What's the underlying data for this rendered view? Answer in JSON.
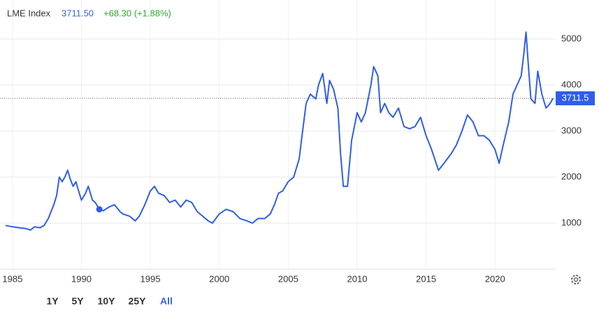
{
  "header": {
    "name": "LME Index",
    "price": "3711.50",
    "change": "+68.30 (+1.88%)"
  },
  "range_buttons": [
    "1Y",
    "5Y",
    "10Y",
    "25Y",
    "All"
  ],
  "active_range": 4,
  "chart_data": {
    "type": "line",
    "x": [
      1984.5,
      1985,
      1985.5,
      1986,
      1986.3,
      1986.6,
      1987,
      1987.3,
      1987.6,
      1988,
      1988.2,
      1988.4,
      1988.6,
      1988.8,
      1989,
      1989.2,
      1989.4,
      1989.6,
      1989.8,
      1990,
      1990.3,
      1990.5,
      1990.8,
      1991,
      1991.3,
      1991.6,
      1992,
      1992.4,
      1992.8,
      1993,
      1993.5,
      1993.9,
      1994.2,
      1994.6,
      1995,
      1995.3,
      1995.6,
      1996,
      1996.4,
      1996.8,
      1997.2,
      1997.6,
      1998,
      1998.4,
      1998.8,
      1999.2,
      1999.5,
      2000,
      2000.5,
      2001,
      2001.5,
      2002,
      2002.4,
      2002.8,
      2003.3,
      2003.7,
      2004,
      2004.3,
      2004.6,
      2005,
      2005.4,
      2005.8,
      2006,
      2006.3,
      2006.6,
      2007,
      2007.2,
      2007.5,
      2007.8,
      2008,
      2008.3,
      2008.6,
      2008.8,
      2009,
      2009.3,
      2009.6,
      2010,
      2010.3,
      2010.6,
      2011,
      2011.2,
      2011.5,
      2011.7,
      2012,
      2012.3,
      2012.6,
      2013,
      2013.4,
      2013.8,
      2014.2,
      2014.6,
      2015,
      2015.4,
      2015.9,
      2016.3,
      2016.8,
      2017.2,
      2017.6,
      2018,
      2018.4,
      2018.8,
      2019.2,
      2019.6,
      2020,
      2020.3,
      2020.6,
      2021,
      2021.3,
      2021.6,
      2021.9,
      2022.1,
      2022.25,
      2022.4,
      2022.6,
      2022.9,
      2023.1,
      2023.4,
      2023.7,
      2024,
      2024.2
    ],
    "series": [
      {
        "name": "LME Index",
        "color": "#2f5ee8",
        "values": [
          950,
          920,
          900,
          880,
          850,
          920,
          900,
          950,
          1100,
          1400,
          1600,
          2000,
          1900,
          2000,
          2150,
          1950,
          1800,
          1900,
          1700,
          1500,
          1650,
          1800,
          1500,
          1450,
          1300,
          1270,
          1350,
          1400,
          1250,
          1200,
          1150,
          1050,
          1150,
          1400,
          1700,
          1800,
          1650,
          1600,
          1450,
          1500,
          1350,
          1500,
          1450,
          1250,
          1150,
          1050,
          1000,
          1200,
          1300,
          1250,
          1100,
          1050,
          1000,
          1100,
          1100,
          1200,
          1400,
          1650,
          1700,
          1900,
          2000,
          2400,
          2900,
          3600,
          3800,
          3700,
          4000,
          4250,
          3600,
          4100,
          3900,
          3500,
          2500,
          1800,
          1800,
          2800,
          3400,
          3200,
          3400,
          4000,
          4400,
          4200,
          3400,
          3600,
          3400,
          3300,
          3500,
          3100,
          3050,
          3100,
          3300,
          2900,
          2600,
          2150,
          2300,
          2500,
          2700,
          3000,
          3350,
          3200,
          2900,
          2900,
          2800,
          2600,
          2300,
          2700,
          3200,
          3800,
          4000,
          4200,
          4700,
          5150,
          4500,
          3700,
          3600,
          4300,
          3800,
          3500,
          3600,
          3711.5
        ]
      }
    ],
    "marker": {
      "x": 1991.3,
      "value": 1300
    },
    "last": {
      "value": 3711.5,
      "label": "3711.5"
    },
    "xlim": [
      1984.5,
      2024.4
    ],
    "ylim": [
      0,
      5620
    ],
    "xticks": [
      1985,
      1990,
      1995,
      2000,
      2005,
      2010,
      2015,
      2020
    ],
    "yticks": [
      1000,
      2000,
      3000,
      4000,
      5000
    ],
    "grid": true
  }
}
